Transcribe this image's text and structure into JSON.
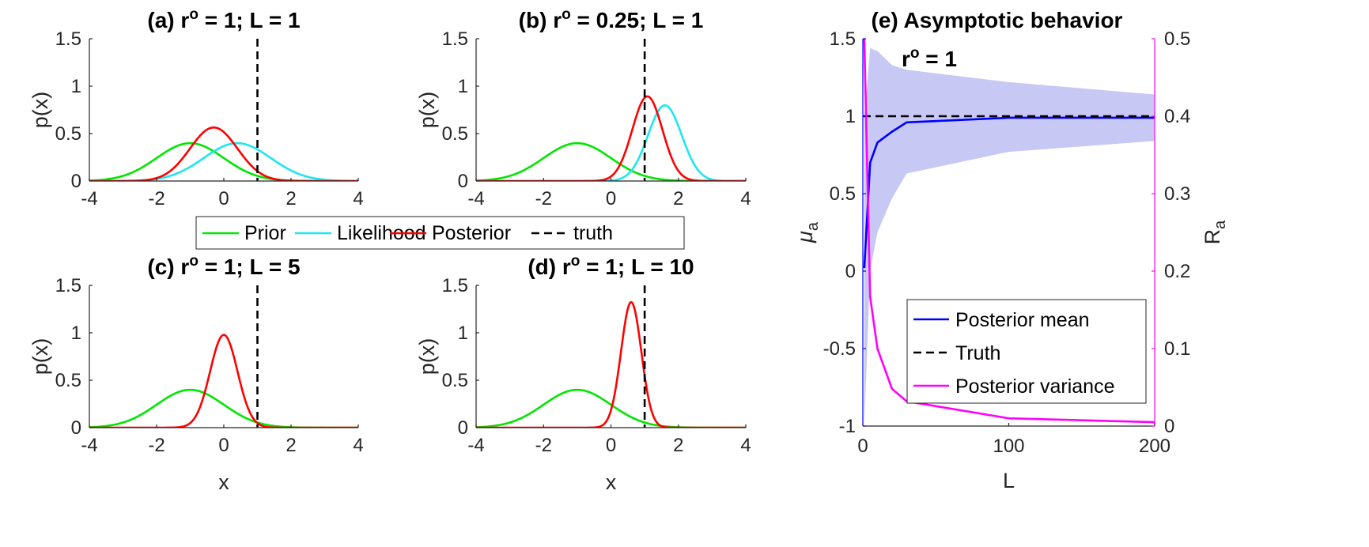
{
  "figure": {
    "shared_legend": [
      {
        "label": "Prior",
        "color": "#00e600",
        "dash": false
      },
      {
        "label": "Likelihood",
        "color": "#1ee6f0",
        "dash": false
      },
      {
        "label": "Posterior",
        "color": "#ff0000",
        "dash": false
      },
      {
        "label": "truth",
        "color": "#000000",
        "dash": true
      }
    ]
  },
  "chart_data": [
    {
      "id": "a",
      "type": "line",
      "title": "(a) r° = 1; L = 1",
      "title_parts": {
        "prefix": "(a) r",
        "sup": "o",
        "suffix": " = 1; L = 1"
      },
      "xlabel": "",
      "ylabel": "p(x)",
      "xlim": [
        -4,
        4
      ],
      "ylim": [
        0,
        1.5
      ],
      "xticks": [
        "-4",
        "-2",
        "0",
        "2",
        "4"
      ],
      "yticks": [
        "0",
        "0.5",
        "1",
        "1.5"
      ],
      "truth": 1,
      "series": [
        {
          "name": "Prior",
          "dist": "normal",
          "mean": -1,
          "sd": 1,
          "color": "#00e600"
        },
        {
          "name": "Likelihood",
          "dist": "normal",
          "mean": 0.4,
          "sd": 1,
          "color": "#1ee6f0"
        },
        {
          "name": "Posterior",
          "dist": "normal",
          "mean": -0.3,
          "sd": 0.707,
          "color": "#ff0000"
        }
      ]
    },
    {
      "id": "b",
      "type": "line",
      "title": "(b) r° = 0.25; L = 1",
      "title_parts": {
        "prefix": "(b) r",
        "sup": "o",
        "suffix": " = 0.25; L = 1"
      },
      "xlabel": "",
      "ylabel": "p(x)",
      "xlim": [
        -4,
        4
      ],
      "ylim": [
        0,
        1.5
      ],
      "xticks": [
        "-4",
        "-2",
        "0",
        "2",
        "4"
      ],
      "yticks": [
        "0",
        "0.5",
        "1",
        "1.5"
      ],
      "truth": 1,
      "series": [
        {
          "name": "Prior",
          "dist": "normal",
          "mean": -1,
          "sd": 1,
          "color": "#00e600"
        },
        {
          "name": "Likelihood",
          "dist": "normal",
          "mean": 1.6,
          "sd": 0.5,
          "color": "#1ee6f0"
        },
        {
          "name": "Posterior",
          "dist": "normal",
          "mean": 1.08,
          "sd": 0.447,
          "color": "#ff0000"
        }
      ]
    },
    {
      "id": "c",
      "type": "line",
      "title": "(c) r° = 1; L = 5",
      "title_parts": {
        "prefix": "(c) r",
        "sup": "o",
        "suffix": " = 1; L = 5"
      },
      "xlabel": "x",
      "ylabel": "p(x)",
      "xlim": [
        -4,
        4
      ],
      "ylim": [
        0,
        1.5
      ],
      "xticks": [
        "-4",
        "-2",
        "0",
        "2",
        "4"
      ],
      "yticks": [
        "0",
        "0.5",
        "1",
        "1.5"
      ],
      "truth": 1,
      "series": [
        {
          "name": "Prior",
          "dist": "normal",
          "mean": -1,
          "sd": 1,
          "color": "#00e600"
        },
        {
          "name": "Posterior",
          "dist": "normal",
          "mean": 0.0,
          "sd": 0.408,
          "color": "#ff0000"
        }
      ]
    },
    {
      "id": "d",
      "type": "line",
      "title": "(d) r° = 1; L = 10",
      "title_parts": {
        "prefix": "(d) r",
        "sup": "o",
        "suffix": " = 1; L = 10"
      },
      "xlabel": "x",
      "ylabel": "p(x)",
      "xlim": [
        -4,
        4
      ],
      "ylim": [
        0,
        1.5
      ],
      "xticks": [
        "-4",
        "-2",
        "0",
        "2",
        "4"
      ],
      "yticks": [
        "0",
        "0.5",
        "1",
        "1.5"
      ],
      "truth": 1,
      "series": [
        {
          "name": "Prior",
          "dist": "normal",
          "mean": -1,
          "sd": 1,
          "color": "#00e600"
        },
        {
          "name": "Posterior",
          "dist": "normal",
          "mean": 0.6,
          "sd": 0.3015,
          "color": "#ff0000"
        }
      ]
    },
    {
      "id": "e",
      "type": "line",
      "title": "(e) Asymptotic behavior",
      "annotation": {
        "prefix": "r",
        "sup": "o",
        "suffix": " = 1"
      },
      "xlabel": "L",
      "ylabel_left": {
        "base": "μ",
        "sub": "a"
      },
      "ylabel_right": {
        "base": "R",
        "sub": "a"
      },
      "xlim": [
        0,
        200
      ],
      "ylim_left": [
        -1,
        1.5
      ],
      "ylim_right": [
        0,
        0.5
      ],
      "xticks": [
        "0",
        "100",
        "200"
      ],
      "yticks_left": [
        "-1",
        "-0.5",
        "0",
        "0.5",
        "1",
        "1.5"
      ],
      "yticks_right": [
        "0",
        "0.1",
        "0.2",
        "0.3",
        "0.4",
        "0.5"
      ],
      "left_axis_color": "#0000ff",
      "right_axis_color": "#ff00ff",
      "x": [
        1,
        5,
        10,
        20,
        30,
        100,
        200
      ],
      "band_upper": [
        1.0,
        1.44,
        1.42,
        1.33,
        1.3,
        1.22,
        1.14
      ],
      "band_lower": [
        -1.0,
        0.0,
        0.25,
        0.47,
        0.63,
        0.77,
        0.84
      ],
      "band_color": "#c8c8f5",
      "series": [
        {
          "name": "Posterior mean",
          "axis": "left",
          "color": "#0000ff",
          "dash": false,
          "values": [
            0.02,
            0.7,
            0.83,
            0.9,
            0.96,
            0.99,
            0.99
          ]
        },
        {
          "name": "Truth",
          "axis": "left",
          "color": "#000000",
          "dash": true,
          "values": [
            1,
            1,
            1,
            1,
            1,
            1,
            1
          ]
        },
        {
          "name": "Posterior variance",
          "axis": "right",
          "color": "#ff00ff",
          "dash": false,
          "values": [
            0.5,
            0.167,
            0.1,
            0.048,
            0.032,
            0.01,
            0.005
          ]
        }
      ],
      "legend": [
        {
          "label": "Posterior mean",
          "color": "#0000ff",
          "dash": false
        },
        {
          "label": "Truth",
          "color": "#000000",
          "dash": true
        },
        {
          "label": "Posterior variance",
          "color": "#ff00ff",
          "dash": false
        }
      ]
    }
  ]
}
